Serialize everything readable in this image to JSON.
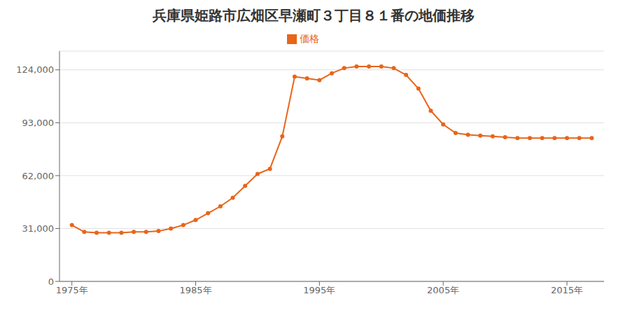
{
  "chart_data": {
    "type": "line",
    "title": "兵庫県姫路市広畑区早瀬町３丁目８１番の地価推移",
    "x": [
      1975,
      1976,
      1977,
      1978,
      1979,
      1980,
      1981,
      1982,
      1983,
      1984,
      1985,
      1986,
      1987,
      1988,
      1989,
      1990,
      1991,
      1992,
      1993,
      1994,
      1995,
      1996,
      1997,
      1998,
      1999,
      2000,
      2001,
      2002,
      2003,
      2004,
      2005,
      2006,
      2007,
      2008,
      2009,
      2010,
      2011,
      2012,
      2013,
      2014,
      2015,
      2016,
      2017
    ],
    "series": [
      {
        "name": "価格",
        "color": "#e8651a",
        "marker": "circle",
        "values": [
          33000,
          29000,
          28500,
          28500,
          28500,
          29000,
          29000,
          29500,
          31000,
          33000,
          36000,
          40000,
          44000,
          49000,
          56000,
          63000,
          66000,
          85000,
          120000,
          119000,
          118000,
          122000,
          125000,
          126000,
          126000,
          126000,
          125000,
          121000,
          113000,
          100000,
          92000,
          87000,
          86000,
          85500,
          85000,
          84500,
          84000,
          84000,
          84000,
          84000,
          84000,
          84000,
          84000
        ]
      }
    ],
    "xlim": [
      1974,
      2018
    ],
    "xticks": [
      {
        "value": 1975,
        "label": "1975年"
      },
      {
        "value": 1985,
        "label": "1985年"
      },
      {
        "value": 1995,
        "label": "1995年"
      },
      {
        "value": 2005,
        "label": "2005年"
      },
      {
        "value": 2015,
        "label": "2015年"
      }
    ],
    "ylim": [
      0,
      135000
    ],
    "yticks": [
      0,
      {
        "value": 31000,
        "label": "31,000"
      },
      {
        "value": 62000,
        "label": "62,000"
      },
      {
        "value": 93000,
        "label": "93,000"
      },
      {
        "value": 124000,
        "label": "124,000"
      }
    ],
    "grid": "y",
    "legend": "top"
  }
}
